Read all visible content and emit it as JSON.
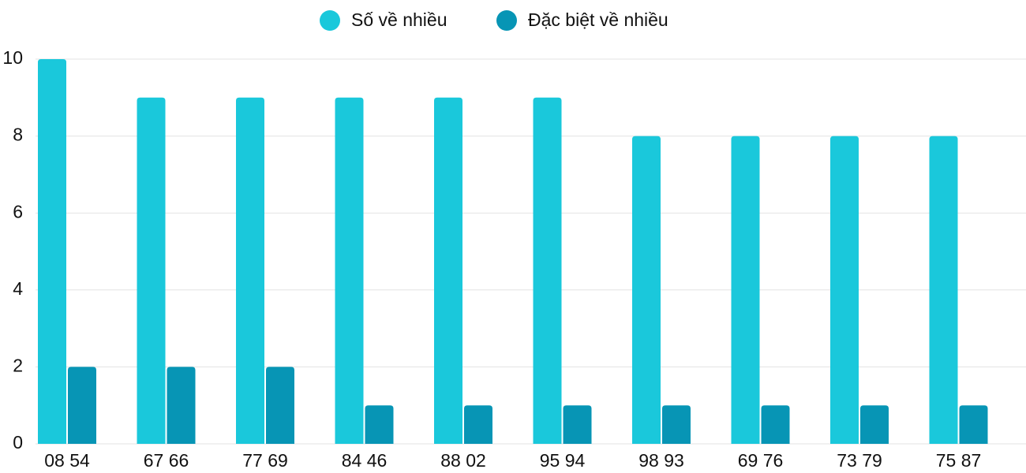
{
  "chart_data": {
    "type": "bar",
    "categories": [
      "08 54",
      "67 66",
      "77 69",
      "84 46",
      "88 02",
      "95 94",
      "98 93",
      "69 76",
      "73 79",
      "75 87"
    ],
    "series": [
      {
        "name": "Số về nhiều",
        "color": "#1ac8db",
        "values": [
          10,
          9,
          9,
          9,
          9,
          9,
          8,
          8,
          8,
          8
        ]
      },
      {
        "name": "Đặc biệt về nhiều",
        "color": "#0795b5",
        "values": [
          2,
          2,
          2,
          1,
          1,
          1,
          1,
          1,
          1,
          1
        ]
      }
    ],
    "ylim": [
      0,
      10
    ],
    "yticks": [
      0,
      2,
      4,
      6,
      8,
      10
    ],
    "grid": true
  }
}
